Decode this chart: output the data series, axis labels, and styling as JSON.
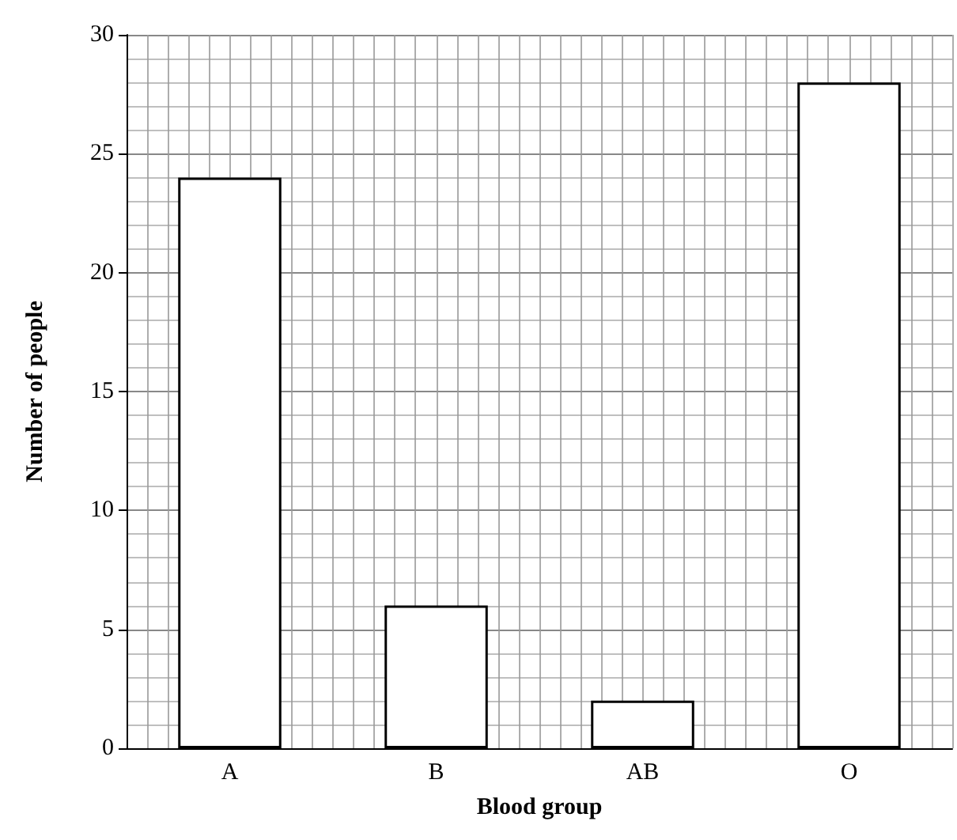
{
  "chart_data": {
    "type": "bar",
    "xlabel": "Blood group",
    "ylabel": "Number of people",
    "categories": [
      "A",
      "B",
      "AB",
      "O"
    ],
    "values": [
      24,
      6,
      2,
      28
    ],
    "color": "#ffffff",
    "ylim": [
      0,
      30
    ],
    "yticks": [
      0,
      5,
      10,
      15,
      20,
      25,
      30
    ],
    "grid": true
  }
}
